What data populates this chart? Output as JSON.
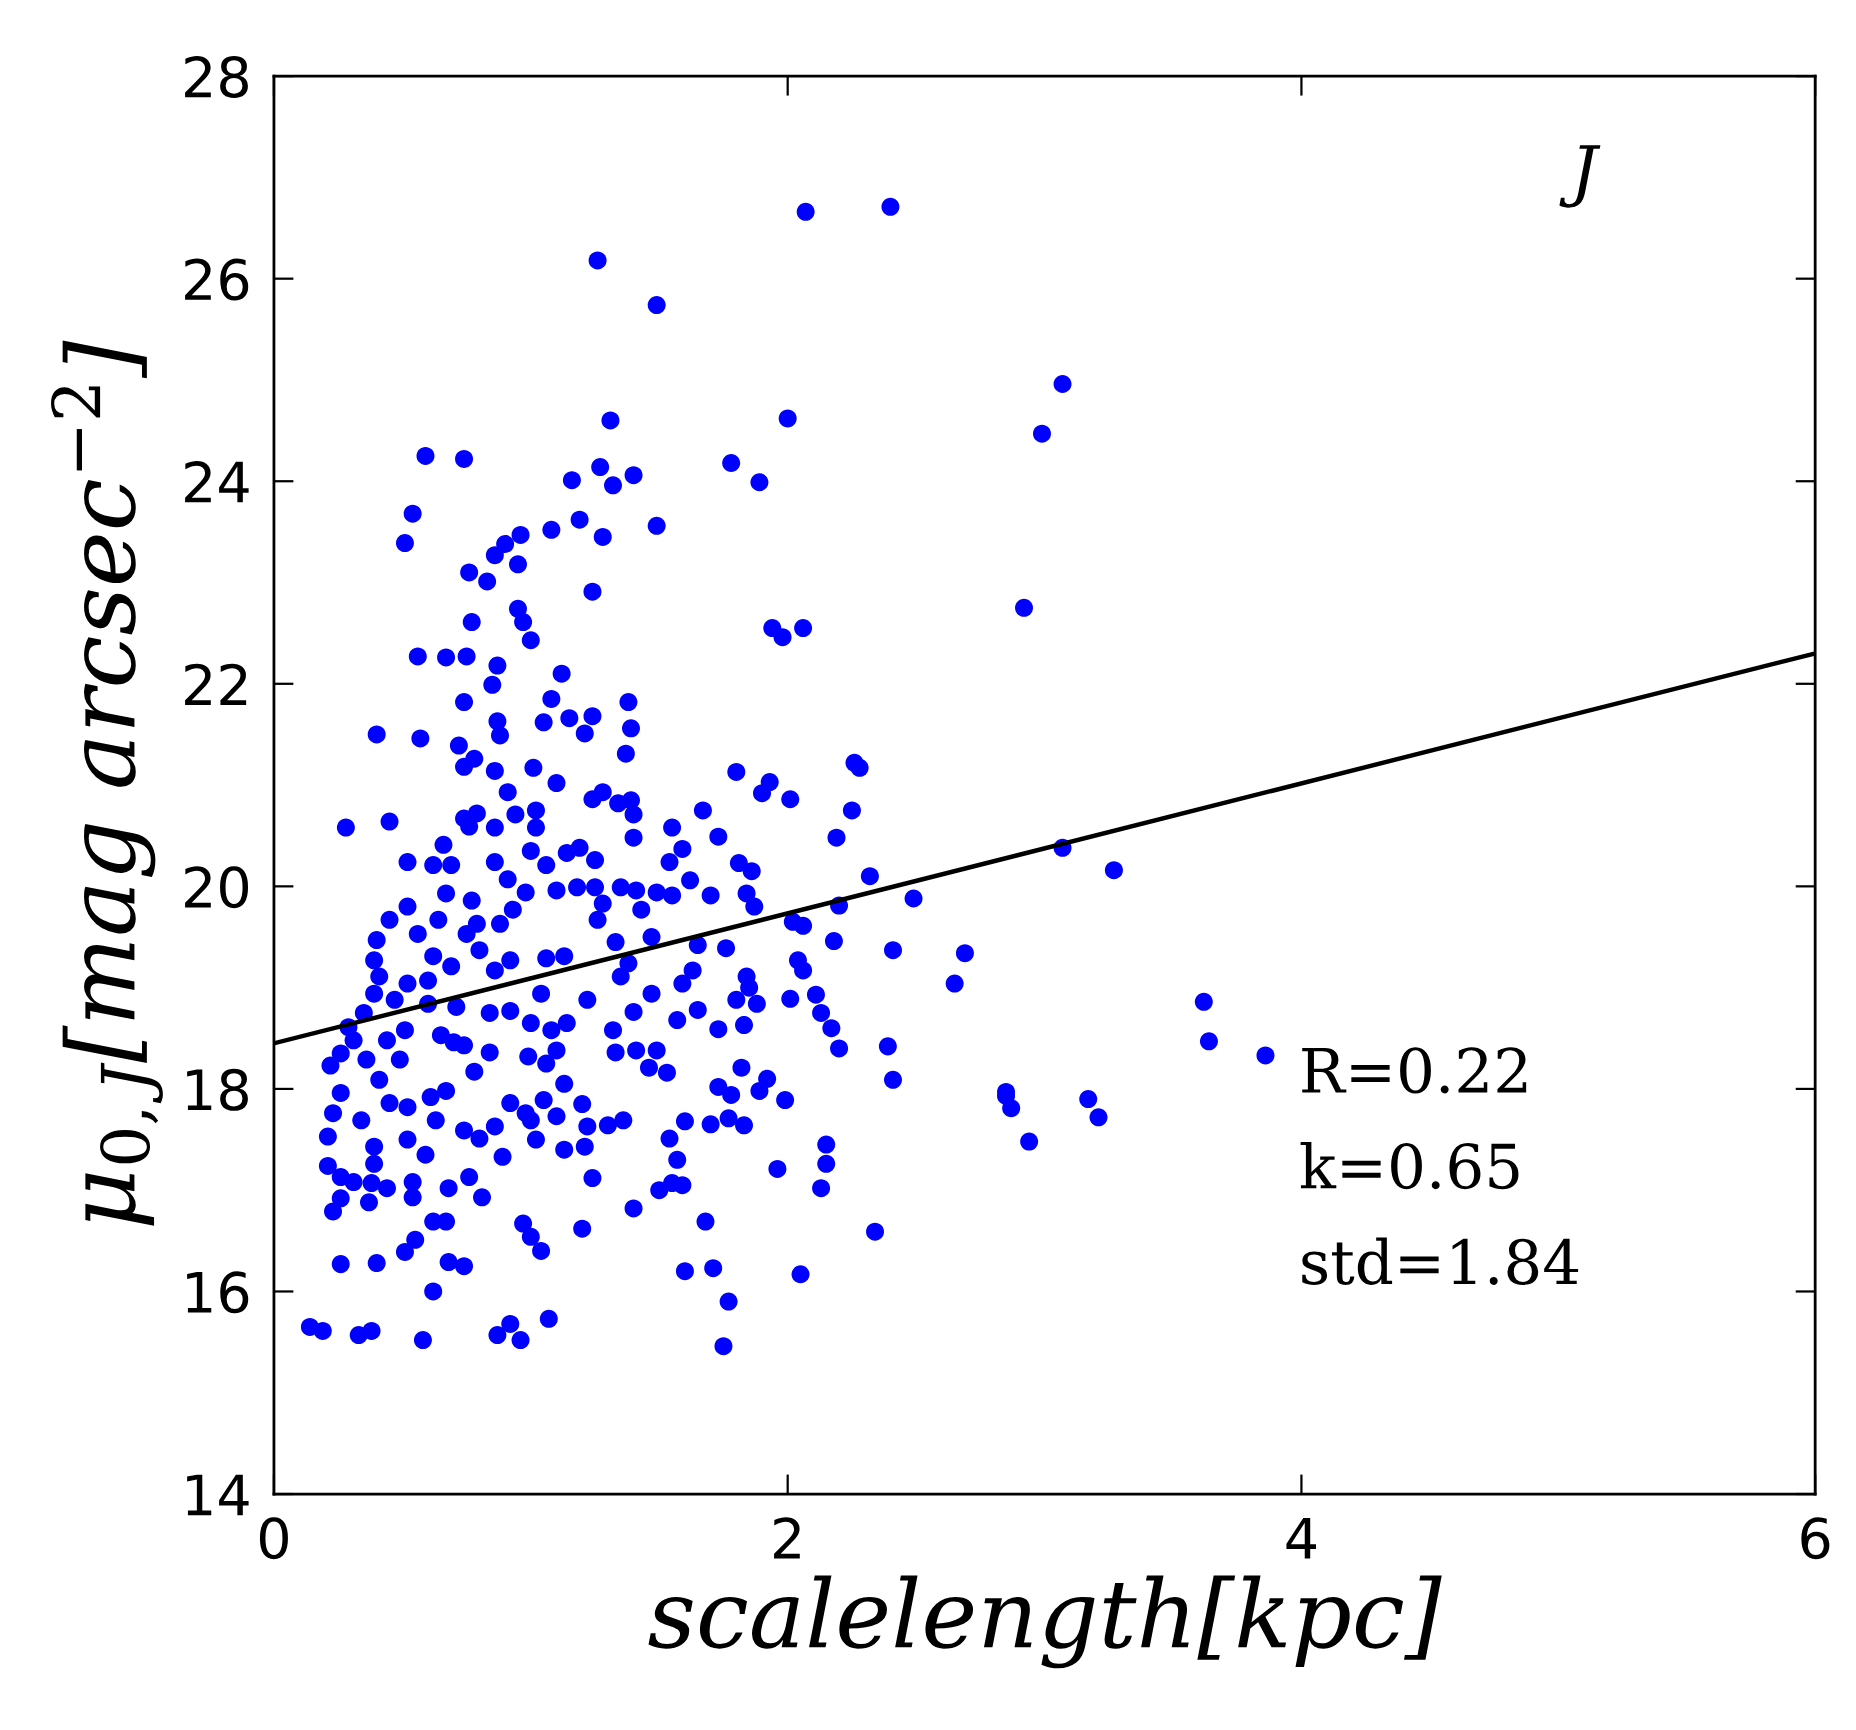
{
  "chart_data": {
    "type": "scatter",
    "xlabel": "scalelength[kpc]",
    "ylabel": "μ$_{0,J}$[mag arcsec$^{−2}$]",
    "xlim": [
      0,
      6
    ],
    "ylim": [
      14,
      28
    ],
    "xticks": [
      0,
      2,
      4,
      6
    ],
    "yticks": [
      14,
      16,
      18,
      20,
      22,
      24,
      26,
      28
    ],
    "grid": false,
    "marker": "circle",
    "annotations": [
      "J",
      "R=0.22",
      "k=0.65",
      "std=1.84"
    ],
    "series": [
      {
        "color": "#0000ff",
        "x": [
          2.07,
          2.4,
          1.26,
          1.49,
          3.07,
          2.99,
          1.31,
          2.0,
          0.59,
          0.74,
          1.16,
          1.27,
          1.32,
          1.4,
          1.78,
          1.89,
          0.54,
          0.51,
          1.08,
          1.19,
          1.28,
          1.49,
          0.86,
          0.9,
          0.96,
          0.95,
          0.76,
          0.83,
          1.24,
          2.92,
          0.95,
          0.97,
          1.0,
          0.77,
          1.94,
          1.98,
          2.06,
          0.56,
          0.67,
          0.75,
          0.87,
          0.85,
          1.12,
          0.74,
          1.08,
          1.05,
          1.15,
          1.24,
          1.21,
          1.38,
          1.39,
          1.37,
          0.87,
          0.88,
          0.4,
          0.57,
          0.72,
          0.74,
          0.78,
          0.86,
          0.91,
          1.01,
          1.1,
          1.8,
          1.93,
          1.9,
          2.01,
          2.26,
          2.28,
          2.25,
          1.24,
          1.28,
          1.34,
          1.39,
          1.4,
          1.67,
          0.28,
          0.45,
          0.74,
          0.79,
          0.76,
          0.86,
          0.94,
          1.02,
          1.02,
          1.55,
          1.4,
          1.73,
          2.19,
          1.59,
          0.66,
          0.52,
          0.62,
          0.69,
          0.86,
          1.0,
          1.06,
          1.14,
          1.19,
          1.25,
          1.54,
          1.62,
          1.81,
          1.86,
          0.91,
          0.98,
          1.1,
          1.18,
          1.25,
          1.35,
          1.41,
          1.49,
          1.55,
          1.7,
          1.84,
          1.87,
          2.32,
          2.49,
          2.2,
          2.18,
          2.02,
          2.06,
          3.07,
          2.41,
          2.69,
          2.65,
          2.85,
          2.87,
          2.94,
          2.39,
          2.41,
          2.34,
          2.05,
          1.75,
          1.77,
          1.71,
          1.6,
          1.68,
          1.4,
          1.2,
          0.97,
          1.0,
          1.04,
          1.07,
          0.92,
          0.87,
          0.96,
          0.58,
          0.33,
          0.38,
          0.14,
          0.19,
          0.26,
          0.4,
          0.62,
          0.68,
          0.74,
          0.51,
          0.55,
          0.62,
          0.67,
          0.23,
          0.26,
          0.37,
          0.44,
          0.54,
          0.54,
          0.68,
          0.76,
          0.81,
          0.89,
          0.59,
          0.21,
          0.26,
          0.31,
          0.39,
          0.38,
          1.24,
          1.5,
          1.55,
          1.59,
          1.57,
          1.54,
          1.96,
          2.13,
          2.15,
          2.15,
          1.21,
          1.13,
          1.22,
          1.3,
          1.36,
          1.02,
          1.0,
          1.1,
          1.2,
          1.6,
          1.7,
          1.77,
          1.83,
          1.73,
          1.78,
          1.82,
          1.89,
          1.92,
          1.99,
          1.46,
          1.53,
          1.49,
          1.41,
          1.33,
          2.2,
          2.17,
          2.13,
          2.11,
          2.01,
          2.04,
          2.06,
          1.84,
          1.85,
          1.88,
          1.83,
          1.8,
          1.76,
          1.65,
          1.63,
          1.59,
          1.57,
          1.65,
          1.73,
          1.47,
          1.4,
          1.32,
          1.35,
          1.38,
          1.33,
          1.26,
          1.22,
          1.47,
          1.43,
          1.28,
          1.13,
          1.06,
          1.04,
          1.14,
          1.08,
          1.0,
          1.1,
          1.06,
          0.99,
          1.13,
          1.05,
          0.98,
          0.92,
          0.86,
          0.84,
          0.78,
          0.74,
          0.8,
          0.67,
          0.61,
          0.63,
          0.65,
          0.7,
          0.74,
          0.84,
          0.92,
          0.71,
          0.6,
          0.51,
          0.22,
          0.26,
          0.31,
          0.36,
          0.41,
          0.26,
          0.23,
          0.34,
          0.45,
          0.52,
          0.52,
          0.39,
          0.21,
          0.29,
          0.44,
          0.49,
          0.35,
          0.39,
          0.41,
          0.39,
          0.4,
          0.45,
          0.52,
          0.56,
          0.62,
          0.64,
          0.67,
          0.69,
          0.6,
          0.75,
          0.77,
          0.8,
          0.79,
          0.88,
          0.92,
          0.93,
          0.86,
          0.52,
          0.47,
          3.62,
          3.64,
          3.86,
          3.17,
          3.21,
          2.85,
          3.27
        ],
        "values": [
          26.66,
          26.71,
          26.18,
          25.74,
          24.96,
          24.47,
          24.6,
          24.62,
          24.25,
          24.22,
          24.01,
          24.14,
          23.96,
          24.06,
          24.18,
          23.99,
          23.68,
          23.39,
          23.52,
          23.62,
          23.45,
          23.56,
          23.27,
          23.38,
          23.47,
          23.18,
          23.1,
          23.01,
          22.91,
          22.75,
          22.74,
          22.61,
          22.43,
          22.61,
          22.55,
          22.46,
          22.55,
          22.27,
          22.26,
          22.27,
          22.18,
          21.99,
          22.1,
          21.82,
          21.85,
          21.62,
          21.66,
          21.68,
          21.51,
          21.82,
          21.56,
          21.31,
          21.63,
          21.49,
          21.5,
          21.46,
          21.39,
          21.18,
          21.26,
          21.14,
          20.93,
          21.17,
          21.02,
          21.13,
          21.03,
          20.92,
          20.86,
          21.22,
          21.17,
          20.75,
          20.86,
          20.93,
          20.82,
          20.85,
          20.71,
          20.75,
          20.58,
          20.64,
          20.67,
          20.72,
          20.59,
          20.58,
          20.71,
          20.75,
          20.58,
          20.58,
          20.48,
          20.49,
          20.48,
          20.37,
          20.41,
          20.24,
          20.21,
          20.21,
          20.24,
          20.35,
          20.21,
          20.33,
          20.38,
          20.26,
          20.24,
          20.06,
          20.23,
          20.15,
          20.07,
          19.94,
          19.96,
          19.99,
          19.99,
          19.99,
          19.96,
          19.94,
          19.91,
          19.91,
          19.93,
          19.8,
          20.1,
          19.88,
          19.81,
          19.46,
          19.65,
          19.61,
          20.38,
          19.37,
          19.34,
          19.04,
          17.97,
          17.81,
          17.48,
          18.42,
          18.09,
          16.59,
          16.17,
          15.46,
          15.9,
          16.23,
          16.2,
          16.69,
          16.82,
          16.62,
          16.67,
          16.54,
          16.4,
          15.73,
          15.68,
          15.57,
          15.52,
          15.52,
          15.57,
          15.61,
          15.65,
          15.61,
          16.27,
          16.28,
          16.0,
          16.29,
          16.25,
          16.39,
          16.51,
          16.69,
          16.69,
          16.79,
          16.92,
          16.88,
          17.02,
          17.08,
          16.93,
          17.02,
          17.13,
          16.93,
          17.33,
          17.35,
          17.24,
          17.13,
          17.08,
          17.26,
          17.07,
          17.12,
          17.0,
          17.07,
          17.05,
          17.3,
          17.51,
          17.21,
          17.02,
          17.26,
          17.45,
          17.43,
          17.4,
          17.63,
          17.64,
          17.69,
          17.5,
          17.69,
          17.73,
          17.85,
          17.68,
          17.65,
          17.71,
          17.64,
          18.02,
          17.94,
          18.21,
          17.98,
          18.1,
          17.89,
          18.21,
          18.16,
          18.38,
          18.38,
          18.36,
          18.4,
          18.6,
          18.75,
          18.93,
          18.89,
          19.27,
          19.17,
          19.11,
          19.0,
          18.84,
          18.63,
          18.88,
          19.39,
          19.42,
          19.17,
          19.04,
          18.68,
          18.78,
          18.59,
          18.94,
          18.76,
          18.58,
          19.11,
          19.24,
          19.45,
          19.67,
          18.88,
          19.5,
          19.77,
          19.83,
          19.31,
          19.29,
          18.94,
          18.65,
          18.58,
          18.65,
          18.38,
          18.25,
          18.32,
          18.05,
          17.89,
          17.76,
          17.86,
          17.63,
          18.36,
          18.17,
          17.59,
          17.51,
          17.98,
          17.92,
          17.69,
          18.53,
          18.46,
          18.43,
          18.75,
          18.77,
          18.81,
          18.84,
          18.58,
          18.23,
          18.35,
          18.48,
          18.29,
          18.09,
          17.96,
          17.76,
          17.69,
          17.86,
          17.82,
          17.5,
          17.43,
          17.53,
          18.61,
          18.48,
          18.29,
          18.75,
          18.94,
          19.11,
          19.27,
          19.47,
          19.67,
          19.8,
          19.53,
          19.31,
          19.67,
          19.93,
          19.21,
          19.07,
          19.53,
          19.86,
          19.37,
          19.63,
          19.63,
          19.27,
          19.77,
          19.17,
          19.04,
          18.88,
          18.86,
          18.47,
          18.33,
          17.9,
          17.72,
          17.93,
          20.16
        ]
      },
      {
        "type": "line",
        "color": "#000000",
        "line_style": "solid",
        "marker": "none",
        "x": [
          0,
          6
        ],
        "values": [
          18.45,
          22.3
        ]
      }
    ]
  }
}
